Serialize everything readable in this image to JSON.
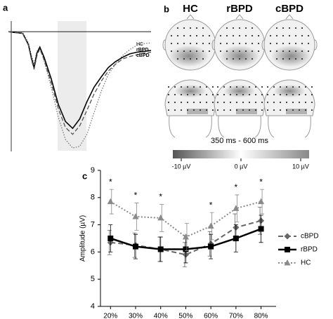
{
  "chart_data": [
    {
      "type": "line",
      "panel": "a",
      "x": [
        -100,
        -50,
        0,
        40,
        60,
        80,
        100,
        120,
        150,
        200,
        250,
        300,
        350,
        400,
        450,
        500,
        550,
        600,
        650,
        700,
        750,
        800,
        850,
        900
      ],
      "xlim": [
        -100,
        900
      ],
      "ylim": [
        -1,
        14
      ],
      "y_inverted": true,
      "series": [
        {
          "name": "HC",
          "color": "#777777",
          "dash": "1.5,2",
          "values": [
            0,
            0.1,
            0.1,
            1.3,
            2.7,
            3.8,
            2.3,
            1.8,
            3.4,
            6.5,
            10,
            12.6,
            13.6,
            13.4,
            12,
            9.5,
            7,
            5,
            3.8,
            2.8,
            2.1,
            1.6,
            1.4,
            1.3
          ]
        },
        {
          "name": "rBPD",
          "color": "#000000",
          "dash": "none",
          "values": [
            0,
            0.1,
            0.2,
            1.5,
            3,
            4.2,
            2.5,
            1.8,
            3,
            5.5,
            8.5,
            10.5,
            11.3,
            10.2,
            8.2,
            6.5,
            5.3,
            4.2,
            3.5,
            3,
            2.6,
            2.4,
            2.3,
            2.2
          ]
        },
        {
          "name": "cBPD",
          "color": "#555555",
          "dash": "6,3",
          "values": [
            0,
            0.1,
            0.2,
            1.6,
            3.2,
            4.4,
            2.8,
            2,
            3.3,
            6,
            9,
            11.2,
            12,
            11,
            9.2,
            7.3,
            5.8,
            4.6,
            3.8,
            3.2,
            2.9,
            2.7,
            2.5,
            2.4
          ]
        }
      ]
    },
    {
      "type": "topomap",
      "panel": "b",
      "groups": [
        "HC",
        "rBPD",
        "cBPD"
      ],
      "time_window": "350 ms - 600 ms",
      "colorbar_lim": [
        -10,
        10
      ],
      "colorbar_ticks": [
        {
          "value": -10,
          "label": "-10 µV"
        },
        {
          "value": 0,
          "label": "0 µV"
        },
        {
          "value": 10,
          "label": "10 µV"
        }
      ]
    },
    {
      "type": "line",
      "panel": "c",
      "categories": [
        "20%",
        "30%",
        "40%",
        "50%",
        "60%",
        "70%",
        "80%"
      ],
      "ylabel": "Amplitude (µV)",
      "ylim": [
        4,
        9
      ],
      "yticks": [
        4,
        5,
        6,
        7,
        8,
        9
      ],
      "significance": [
        "*",
        "*",
        "*",
        null,
        "*",
        "*",
        "*"
      ],
      "series": [
        {
          "name": "cBPD",
          "color": "#666666",
          "dash": "7,4",
          "marker": "diamond",
          "values": [
            6.35,
            6.25,
            6.1,
            5.9,
            6.3,
            6.9,
            7.15
          ],
          "errors": [
            0.45,
            0.45,
            0.45,
            0.45,
            0.45,
            0.5,
            0.5
          ]
        },
        {
          "name": "rBPD",
          "color": "#000000",
          "dash": "none",
          "marker": "square",
          "values": [
            6.5,
            6.2,
            6.1,
            6.1,
            6.2,
            6.5,
            6.85
          ],
          "errors": [
            0.5,
            0.45,
            0.45,
            0.5,
            0.45,
            0.5,
            0.5
          ]
        },
        {
          "name": "HC",
          "color": "#8a8a8a",
          "dash": "2,2.5",
          "marker": "triangle",
          "values": [
            7.85,
            7.3,
            7.25,
            6.55,
            6.95,
            7.6,
            7.85
          ],
          "errors": [
            0.45,
            0.5,
            0.5,
            0.5,
            0.5,
            0.5,
            0.45
          ]
        }
      ]
    }
  ]
}
